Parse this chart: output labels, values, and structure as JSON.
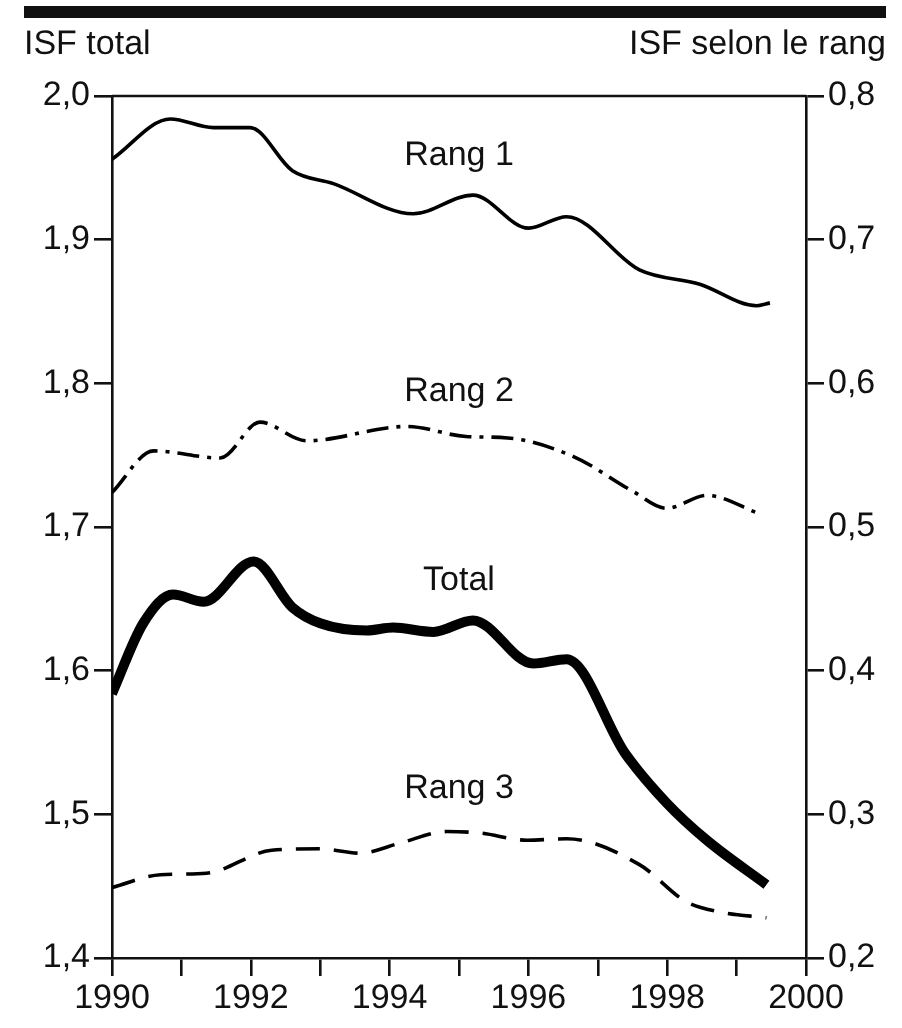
{
  "chart_data": {
    "type": "line",
    "ylabel": "ISF total",
    "y2label": "ISF selon le rang",
    "xlim": [
      1990,
      2000
    ],
    "xticks": [
      1990,
      {
        "value": 1991,
        "label": null
      },
      1992,
      {
        "value": 1993,
        "label": null
      },
      1994,
      {
        "value": 1995,
        "label": null
      },
      1996,
      {
        "value": 1997,
        "label": null
      },
      1998,
      {
        "value": 1999,
        "label": null
      },
      2000
    ],
    "ylim": [
      1.4,
      2.0
    ],
    "yticks": [
      {
        "value": 1.4,
        "label": "1,4"
      },
      {
        "value": 1.5,
        "label": "1,5"
      },
      {
        "value": 1.6,
        "label": "1,6"
      },
      {
        "value": 1.7,
        "label": "1,7"
      },
      {
        "value": 1.8,
        "label": "1,8"
      },
      {
        "value": 1.9,
        "label": "1,9"
      },
      {
        "value": 2.0,
        "label": "2,0"
      }
    ],
    "y2lim": [
      0.2,
      0.8
    ],
    "y2ticks": [
      {
        "value": 0.2,
        "label": "0,2"
      },
      {
        "value": 0.3,
        "label": "0,3"
      },
      {
        "value": 0.4,
        "label": "0,4"
      },
      {
        "value": 0.5,
        "label": "0,5"
      },
      {
        "value": 0.6,
        "label": "0,6"
      },
      {
        "value": 0.7,
        "label": "0,7"
      },
      {
        "value": 0.8,
        "label": "0,8"
      }
    ],
    "grid": false,
    "legend": false,
    "marker": "none",
    "series": [
      {
        "name": "Rang 1",
        "color": "#000000",
        "axis": "y2",
        "line_style": "solid",
        "x": [
          1990,
          1990.84,
          1991.46,
          1991.99,
          1992.6,
          1993.19,
          1994.34,
          1995.2,
          1996.0,
          1996.55,
          1997.6,
          1998.47,
          1999.29,
          1999.48
        ],
        "values": [
          0.756,
          0.784,
          0.778,
          0.778,
          0.748,
          0.739,
          0.718,
          0.731,
          0.708,
          0.716,
          0.679,
          0.669,
          0.654,
          0.656
        ]
      },
      {
        "name": "Rang 2",
        "color": "#000000",
        "axis": "y2",
        "line_style": "dashdot",
        "x": [
          1990,
          1990.6,
          1991.56,
          1992.13,
          1992.8,
          1994.25,
          1995.1,
          1995.7,
          1996.65,
          1997.5,
          1997.99,
          1998.57,
          1999.34
        ],
        "values": [
          0.524,
          0.553,
          0.548,
          0.573,
          0.56,
          0.57,
          0.563,
          0.562,
          0.549,
          0.525,
          0.513,
          0.522,
          0.509
        ]
      },
      {
        "name": "Total",
        "color": "#000000",
        "axis": "y",
        "line_style": "solid",
        "x": [
          1990,
          1990.45,
          1990.88,
          1991.32,
          1992.04,
          1992.6,
          1993.0,
          1993.67,
          1994.05,
          1994.63,
          1995.2,
          1996.07,
          1996.55,
          1997.4,
          1997.99,
          1998.57,
          1999.43
        ],
        "values": [
          1.584,
          1.633,
          1.653,
          1.648,
          1.676,
          1.644,
          1.633,
          1.628,
          1.63,
          1.627,
          1.635,
          1.605,
          1.608,
          1.542,
          1.508,
          1.482,
          1.451
        ]
      },
      {
        "name": "Rang 3",
        "color": "#000000",
        "axis": "y2",
        "line_style": "dashed",
        "x": [
          1990,
          1990.7,
          1991.36,
          1992.3,
          1993.0,
          1993.57,
          1994.15,
          1994.82,
          1995.3,
          1995.98,
          1996.55,
          1997.6,
          1998.28,
          1998.76,
          1999.43
        ],
        "values": [
          0.249,
          0.258,
          0.259,
          0.275,
          0.276,
          0.273,
          0.28,
          0.288,
          0.287,
          0.282,
          0.283,
          0.265,
          0.239,
          0.232,
          0.228
        ]
      }
    ]
  }
}
